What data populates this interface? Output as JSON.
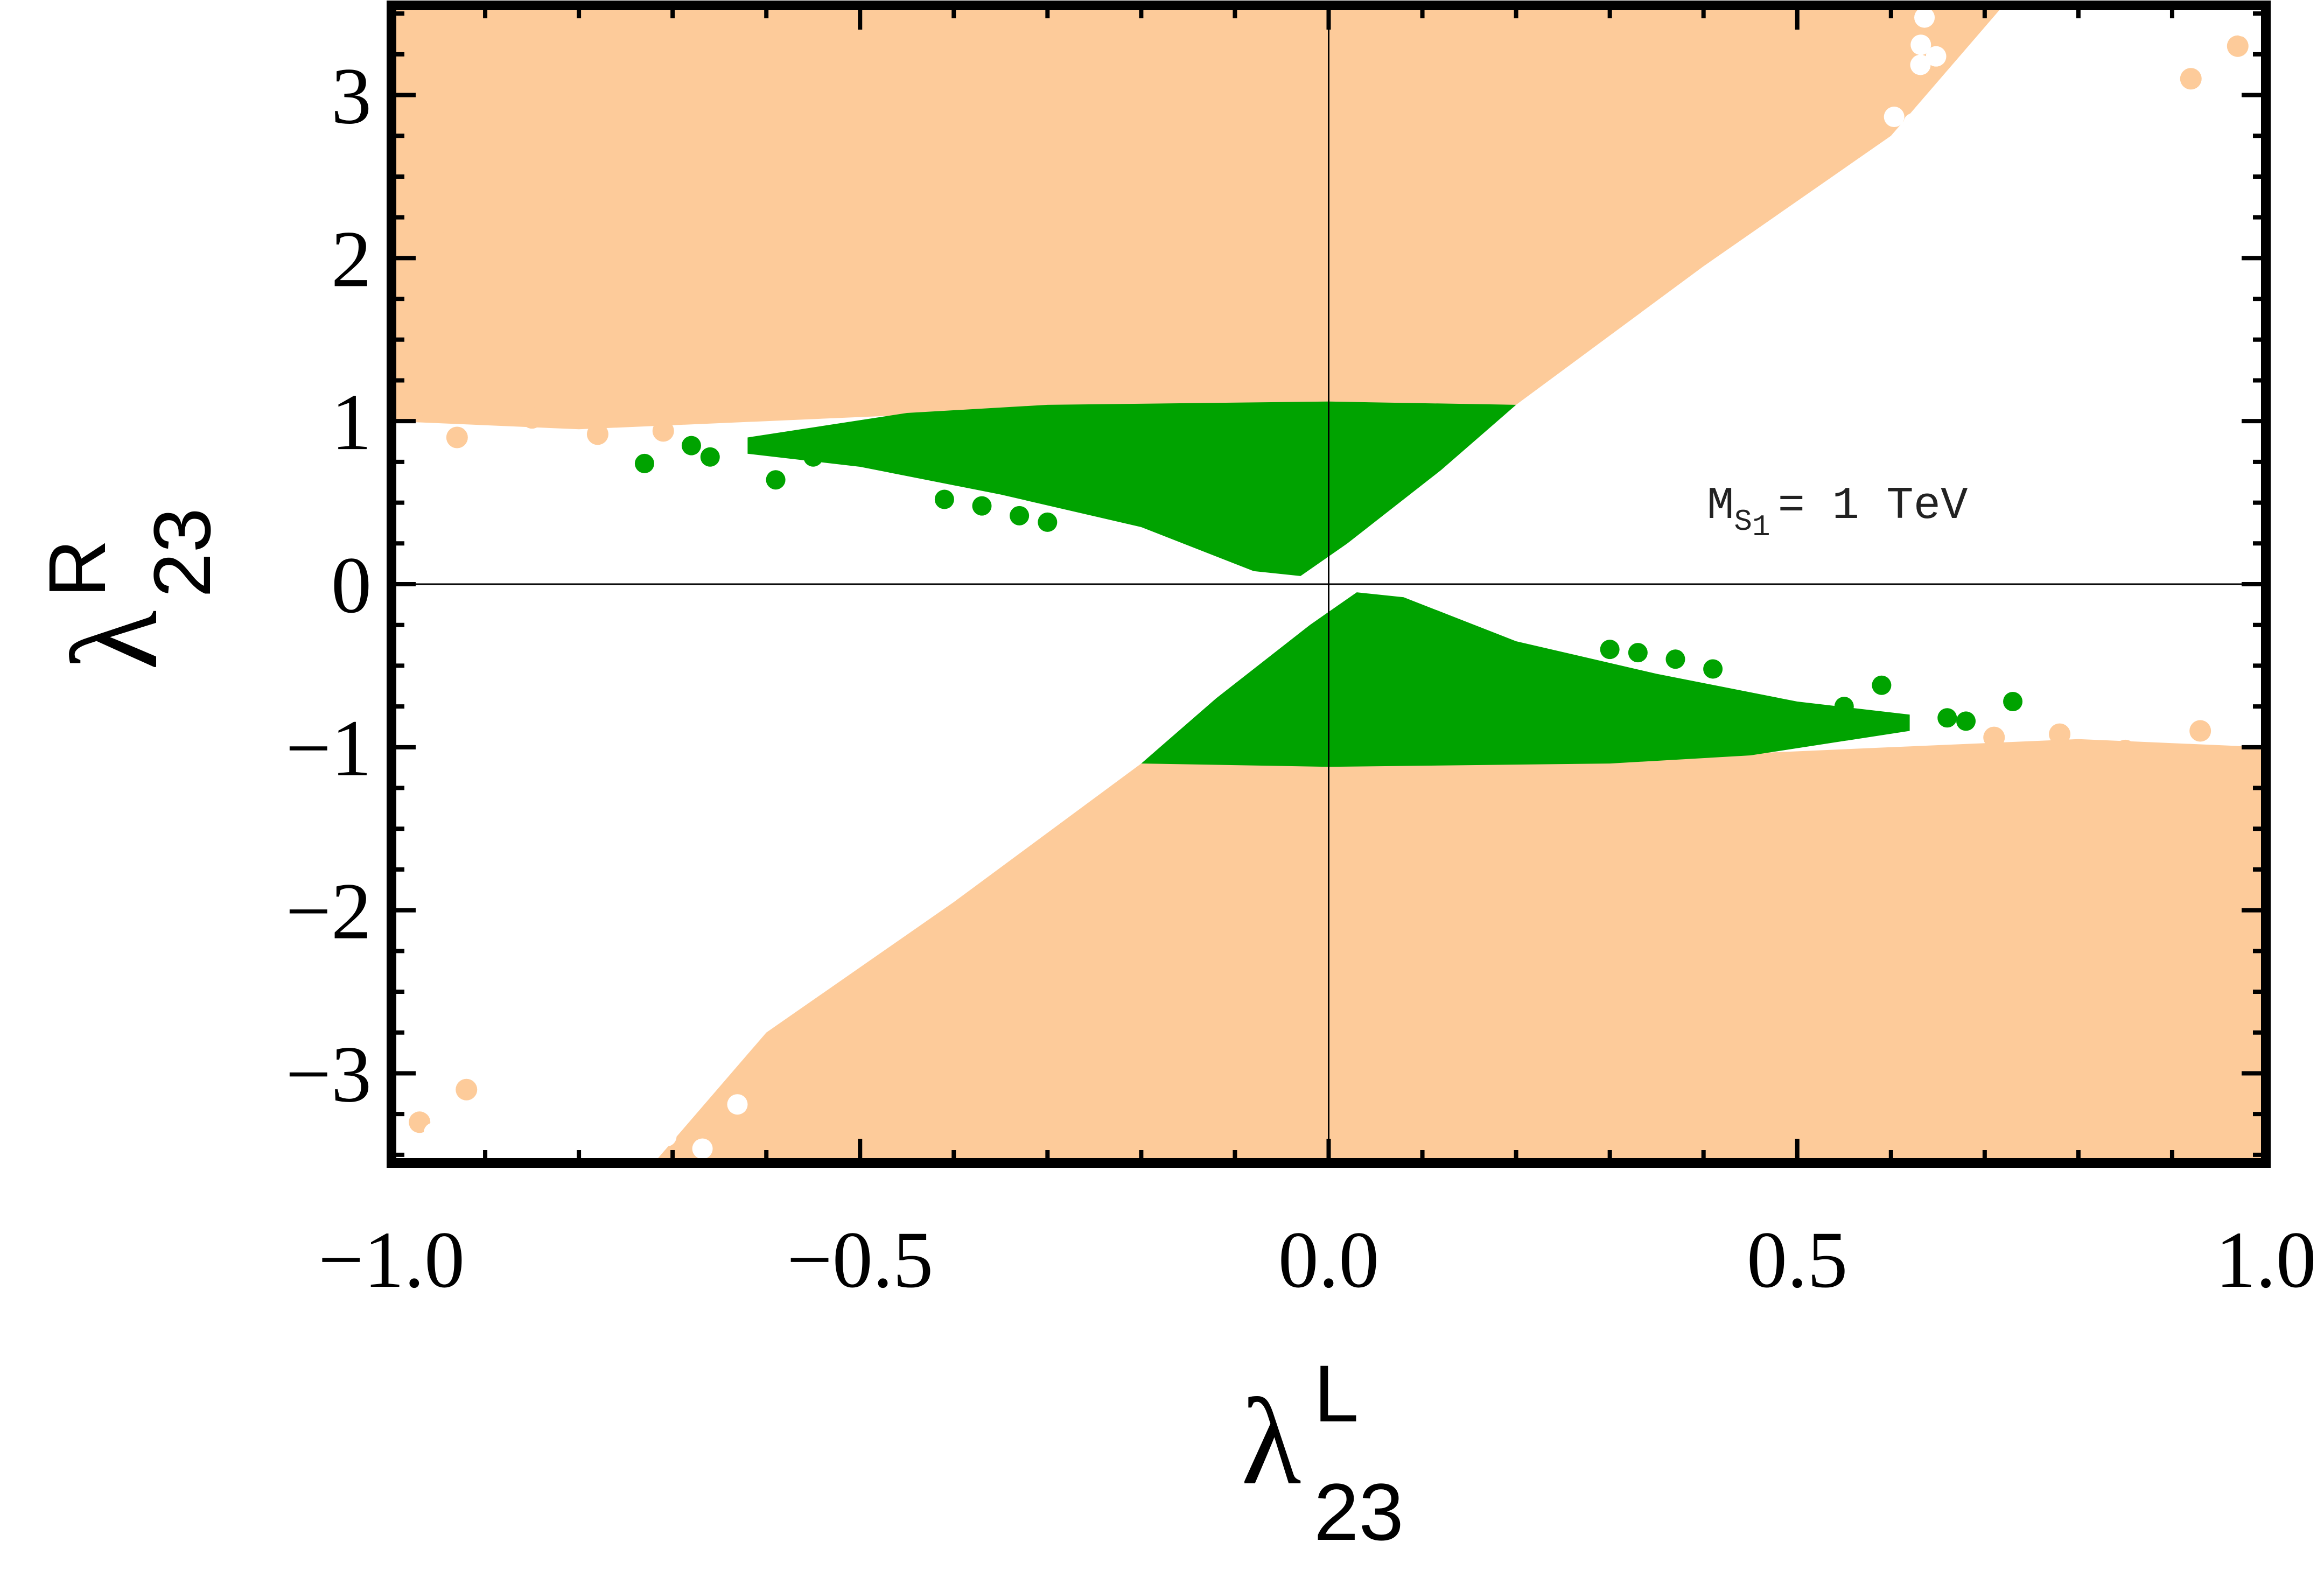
{
  "chart_data": {
    "type": "scatter",
    "title": "",
    "xlabel": {
      "symbol": "λ",
      "superscript": "L",
      "subscript": "23"
    },
    "ylabel": {
      "symbol": "λ",
      "superscript": "R",
      "subscript": "23"
    },
    "xlim": [
      -1.0,
      1.0
    ],
    "ylim": [
      -3.55,
      3.55
    ],
    "x_ticks": [
      {
        "value": -1.0,
        "label": "−1.0"
      },
      {
        "value": -0.5,
        "label": "−0.5"
      },
      {
        "value": 0.0,
        "label": "0.0"
      },
      {
        "value": 0.5,
        "label": "0.5"
      },
      {
        "value": 1.0,
        "label": "1.0"
      }
    ],
    "y_ticks": [
      {
        "value": -3,
        "label": "−3"
      },
      {
        "value": -2,
        "label": "−2"
      },
      {
        "value": -1,
        "label": "−1"
      },
      {
        "value": 0,
        "label": "0"
      },
      {
        "value": 1,
        "label": "1"
      },
      {
        "value": 2,
        "label": "2"
      },
      {
        "value": 3,
        "label": "3"
      }
    ],
    "grid": false,
    "reference_lines": {
      "x": 0,
      "y": 0
    },
    "annotation": {
      "main": "M",
      "sub": "S",
      "subsub": "1",
      "rest": "= 1 TeV",
      "position": "right, just above y = 0"
    },
    "series": [
      {
        "color": "#FDCB9A",
        "upper_region": [
          [
            -1.0,
            1.0
          ],
          [
            -0.8,
            0.95
          ],
          [
            -0.6,
            1.0
          ],
          [
            -0.4,
            1.05
          ],
          [
            -0.2,
            1.08
          ],
          [
            0.0,
            1.1
          ],
          [
            0.2,
            1.1
          ],
          [
            0.4,
            1.95
          ],
          [
            0.6,
            2.75
          ],
          [
            0.72,
            3.55
          ],
          [
            -1.0,
            3.55
          ]
        ],
        "lower_region": [
          [
            1.0,
            -1.0
          ],
          [
            0.8,
            -0.95
          ],
          [
            0.6,
            -1.0
          ],
          [
            0.4,
            -1.05
          ],
          [
            0.2,
            -1.08
          ],
          [
            0.0,
            -1.1
          ],
          [
            -0.2,
            -1.1
          ],
          [
            -0.4,
            -1.95
          ],
          [
            -0.6,
            -2.75
          ],
          [
            -0.72,
            -3.55
          ],
          [
            1.0,
            -3.55
          ]
        ]
      },
      {
        "color": "#00A300",
        "upper_region": [
          [
            -0.62,
            0.9
          ],
          [
            -0.45,
            1.05
          ],
          [
            -0.3,
            1.1
          ],
          [
            0.0,
            1.12
          ],
          [
            0.2,
            1.1
          ],
          [
            0.12,
            0.7
          ],
          [
            0.02,
            0.25
          ],
          [
            -0.03,
            0.05
          ],
          [
            -0.08,
            0.08
          ],
          [
            -0.2,
            0.35
          ],
          [
            -0.35,
            0.55
          ],
          [
            -0.5,
            0.72
          ],
          [
            -0.62,
            0.8
          ]
        ],
        "lower_region": [
          [
            0.62,
            -0.9
          ],
          [
            0.45,
            -1.05
          ],
          [
            0.3,
            -1.1
          ],
          [
            0.0,
            -1.12
          ],
          [
            -0.2,
            -1.1
          ],
          [
            -0.12,
            -0.7
          ],
          [
            -0.02,
            -0.25
          ],
          [
            0.03,
            -0.05
          ],
          [
            0.08,
            -0.08
          ],
          [
            0.2,
            -0.35
          ],
          [
            0.35,
            -0.55
          ],
          [
            0.5,
            -0.72
          ],
          [
            0.62,
            -0.8
          ]
        ]
      }
    ],
    "outliers": {
      "green": [
        [
          -0.73,
          0.74
        ],
        [
          -0.68,
          0.85
        ],
        [
          -0.66,
          0.78
        ],
        [
          -0.59,
          0.64
        ],
        [
          -0.55,
          0.78
        ],
        [
          -0.41,
          0.52
        ],
        [
          -0.37,
          0.48
        ],
        [
          -0.33,
          0.42
        ],
        [
          -0.3,
          0.38
        ],
        [
          0.73,
          -0.72
        ],
        [
          0.68,
          -0.84
        ],
        [
          0.66,
          -0.82
        ],
        [
          0.59,
          -0.62
        ],
        [
          0.55,
          -0.75
        ],
        [
          0.41,
          -0.52
        ],
        [
          0.37,
          -0.46
        ],
        [
          0.33,
          -0.42
        ],
        [
          0.3,
          -0.4
        ]
      ],
      "peach": [
        [
          -0.97,
          1.1
        ],
        [
          -0.93,
          0.9
        ],
        [
          -0.85,
          1.02
        ],
        [
          -0.78,
          0.92
        ],
        [
          -0.71,
          0.94
        ],
        [
          -0.95,
          2.1
        ],
        [
          -0.88,
          1.7
        ],
        [
          -0.82,
          2.3
        ],
        [
          -0.75,
          1.6
        ],
        [
          -0.9,
          2.8
        ],
        [
          -0.8,
          3.0
        ],
        [
          -0.65,
          2.0
        ],
        [
          -0.97,
          -3.3
        ],
        [
          -0.92,
          -3.1
        ],
        [
          0.97,
          -1.1
        ],
        [
          0.93,
          -0.9
        ],
        [
          0.85,
          -1.02
        ],
        [
          0.78,
          -0.92
        ],
        [
          0.71,
          -0.94
        ],
        [
          0.95,
          -2.1
        ],
        [
          0.88,
          -1.7
        ],
        [
          0.82,
          -2.3
        ],
        [
          0.75,
          -1.6
        ],
        [
          0.9,
          -2.8
        ],
        [
          0.8,
          -3.0
        ],
        [
          0.65,
          -2.0
        ],
        [
          0.97,
          3.3
        ],
        [
          0.92,
          3.1
        ]
      ]
    }
  }
}
